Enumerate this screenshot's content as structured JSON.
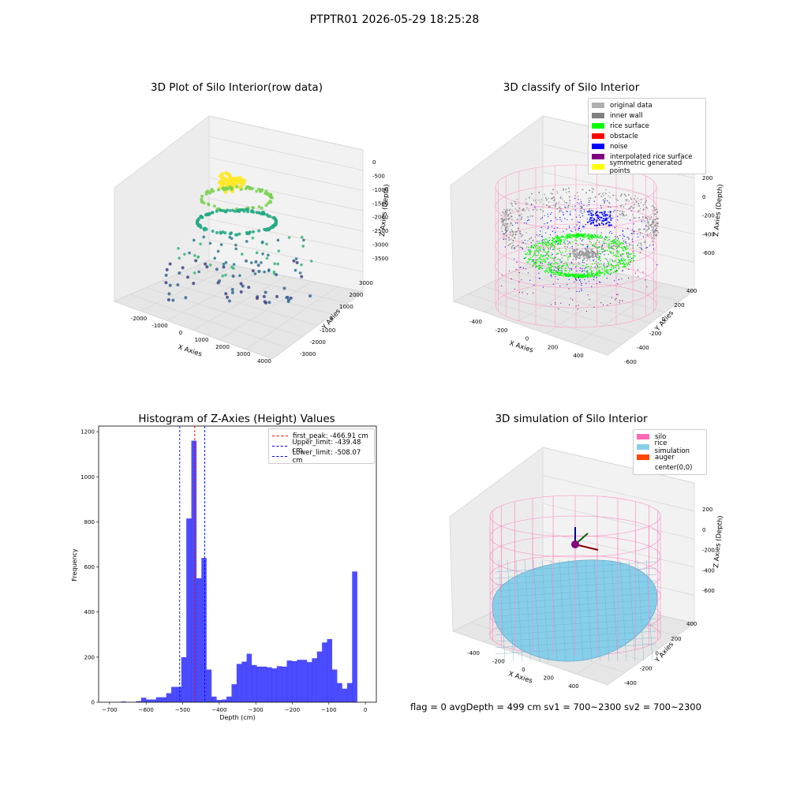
{
  "suptitle": "PTPTR01 2026-05-29 18:25:28",
  "panels": {
    "raw": {
      "title": "3D Plot of Silo Interior(row data)",
      "xlabel": "X Axies",
      "ylabel": "Y Axies",
      "zlabel": "Z Axies (Depth)",
      "xticks": [
        "-2000",
        "-1000",
        "0",
        "1000",
        "2000",
        "3000",
        "4000"
      ],
      "yticks": [
        "3000",
        "2000",
        "1000",
        "0",
        "-1000",
        "-2000",
        "-3000"
      ],
      "zticks": [
        "0",
        "-500",
        "-1000",
        "-1500",
        "-2000",
        "-2500",
        "-3000",
        "-3500"
      ]
    },
    "classify": {
      "title": "3D classify of Silo Interior",
      "xlabel": "X Axies",
      "ylabel": "Y Axies",
      "zlabel": "Z Axies (Depth)",
      "xticks": [
        "-400",
        "-200",
        "0",
        "200",
        "400"
      ],
      "yticks": [
        "400",
        "200",
        "0",
        "-200",
        "-400",
        "-600"
      ],
      "zticks": [
        "200",
        "0",
        "-200",
        "-400",
        "-600"
      ],
      "legend": [
        {
          "label": "original data",
          "color": "#b0b0b0"
        },
        {
          "label": "inner wall",
          "color": "#808080"
        },
        {
          "label": "rice surface",
          "color": "#00ff00"
        },
        {
          "label": "obstacle",
          "color": "#ff0000"
        },
        {
          "label": "noise",
          "color": "#0000ff"
        },
        {
          "label": "interpolated rice surface",
          "color": "#800080"
        },
        {
          "label": "symmetric generated points",
          "color": "#ffff00"
        }
      ]
    },
    "hist": {
      "title": "Histogram of Z-Axies (Height) Values",
      "xlabel": "Depth (cm)",
      "ylabel": "Frequency",
      "legend": [
        {
          "label": "first_peak: -466.91 cm",
          "color": "#ff0000"
        },
        {
          "label": "Upper_limit: -439.48 cm",
          "color": "#0000ff"
        },
        {
          "label": "Lower_limit: -508.07 cm",
          "color": "#0000ff"
        }
      ]
    },
    "sim": {
      "title": "3D simulation of Silo Interior",
      "xlabel": "X Axies",
      "ylabel": "Y Axies",
      "zlabel": "Z Axies (Depth)",
      "xticks": [
        "-400",
        "-200",
        "0",
        "200",
        "400"
      ],
      "yticks": [
        "400",
        "200",
        "0",
        "-200",
        "-400"
      ],
      "zticks": [
        "200",
        "0",
        "-200",
        "-400",
        "-600"
      ],
      "legend": [
        {
          "label": "silo",
          "color": "#ff69b4"
        },
        {
          "label": "rice simulation",
          "color": "#87ceeb"
        },
        {
          "label": "auger",
          "color": "#ff4500"
        },
        {
          "label": "center(0,0)",
          "color": ""
        }
      ]
    }
  },
  "footer": "flag = 0     avgDepth = 499 cm  sv1 = 700~2300  sv2 = 700~2300",
  "chart_data": [
    {
      "type": "bar",
      "title": "Histogram of Z-Axies (Height) Values",
      "xlabel": "Depth (cm)",
      "ylabel": "Frequency",
      "xlim": [
        -730,
        30
      ],
      "ylim": [
        0,
        1225
      ],
      "xticks": [
        -700,
        -600,
        -500,
        -400,
        -300,
        -200,
        -100,
        0
      ],
      "yticks": [
        0,
        200,
        400,
        600,
        800,
        1000,
        1200
      ],
      "bin_width": 13.75,
      "bin_start": -710,
      "counts": [
        0,
        0,
        0,
        3,
        0,
        0,
        5,
        20,
        12,
        12,
        22,
        22,
        40,
        68,
        68,
        200,
        815,
        1160,
        550,
        640,
        145,
        25,
        10,
        12,
        25,
        80,
        170,
        180,
        215,
        165,
        158,
        158,
        155,
        150,
        160,
        158,
        185,
        182,
        188,
        188,
        178,
        195,
        225,
        265,
        280,
        145,
        85,
        60,
        85,
        580
      ],
      "color": "#0000ff",
      "vlines": [
        {
          "x": -466.91,
          "color": "#ff0000",
          "label": "first_peak: -466.91 cm"
        },
        {
          "x": -439.48,
          "color": "#0000ff",
          "label": "Upper_limit: -439.48 cm"
        },
        {
          "x": -508.07,
          "color": "#0000ff",
          "label": "Lower_limit: -508.07 cm"
        }
      ],
      "legend_position": "top-right"
    },
    {
      "type": "scatter",
      "title": "3D Plot of Silo Interior(row data)",
      "xlabel": "X Axies",
      "ylabel": "Y Axies",
      "zlabel": "Z Axies (Depth)",
      "xlim": [
        -2500,
        4000
      ],
      "ylim": [
        -3000,
        3000
      ],
      "zlim": [
        -3700,
        0
      ]
    },
    {
      "type": "scatter",
      "title": "3D classify of Silo Interior",
      "xlabel": "X Axies",
      "ylabel": "Y Axies",
      "zlabel": "Z Axies (Depth)",
      "series": [
        {
          "name": "original data"
        },
        {
          "name": "inner wall"
        },
        {
          "name": "rice surface"
        },
        {
          "name": "obstacle"
        },
        {
          "name": "noise"
        },
        {
          "name": "interpolated rice surface"
        },
        {
          "name": "symmetric generated points"
        }
      ]
    },
    {
      "type": "area",
      "title": "3D simulation of Silo Interior",
      "xlabel": "X Axies",
      "ylabel": "Y Axies",
      "zlabel": "Z Axies (Depth)",
      "series": [
        {
          "name": "silo"
        },
        {
          "name": "rice simulation"
        },
        {
          "name": "auger"
        },
        {
          "name": "center(0,0)"
        }
      ]
    }
  ]
}
